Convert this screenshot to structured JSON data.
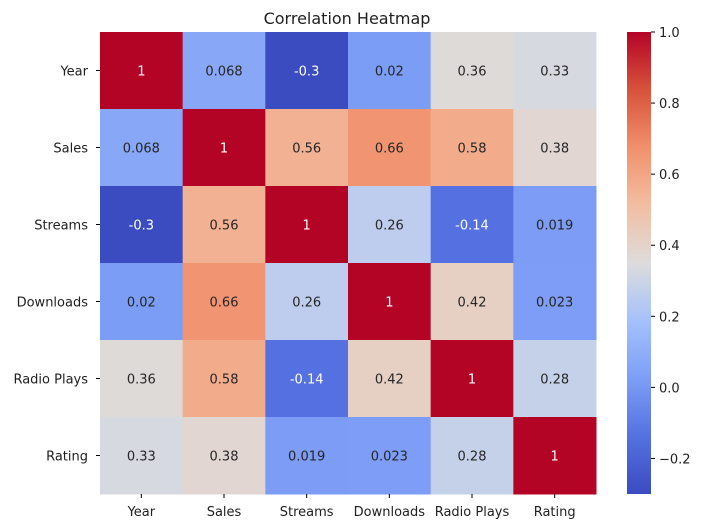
{
  "chart_data": {
    "type": "heatmap",
    "title": "Correlation Heatmap",
    "xlabel": "",
    "ylabel": "",
    "x_labels": [
      "Year",
      "Sales",
      "Streams",
      "Downloads",
      "Radio Plays",
      "Rating"
    ],
    "y_labels": [
      "Year",
      "Sales",
      "Streams",
      "Downloads",
      "Radio Plays",
      "Rating"
    ],
    "values": [
      [
        1,
        0.068,
        -0.3,
        0.02,
        0.36,
        0.33
      ],
      [
        0.068,
        1,
        0.56,
        0.66,
        0.58,
        0.38
      ],
      [
        -0.3,
        0.56,
        1,
        0.26,
        -0.14,
        0.019
      ],
      [
        0.02,
        0.66,
        0.26,
        1,
        0.42,
        0.023
      ],
      [
        0.36,
        0.58,
        -0.14,
        0.42,
        1,
        0.28
      ],
      [
        0.33,
        0.38,
        0.019,
        0.023,
        0.28,
        1
      ]
    ],
    "value_labels": [
      [
        "1",
        "0.068",
        "-0.3",
        "0.02",
        "0.36",
        "0.33"
      ],
      [
        "0.068",
        "1",
        "0.56",
        "0.66",
        "0.58",
        "0.38"
      ],
      [
        "-0.3",
        "0.56",
        "1",
        "0.26",
        "-0.14",
        "0.019"
      ],
      [
        "0.02",
        "0.66",
        "0.26",
        "1",
        "0.42",
        "0.023"
      ],
      [
        "0.36",
        "0.58",
        "-0.14",
        "0.42",
        "1",
        "0.28"
      ],
      [
        "0.33",
        "0.38",
        "0.019",
        "0.023",
        "0.28",
        "1"
      ]
    ],
    "colorscale": "coolwarm",
    "colorbar": {
      "vmin": -0.3,
      "vmax": 1.0,
      "ticks": [
        -0.2,
        0.0,
        0.2,
        0.4,
        0.6,
        0.8,
        1.0
      ],
      "tick_labels": [
        "−0.2",
        "0.0",
        "0.2",
        "0.4",
        "0.6",
        "0.8",
        "1.0"
      ]
    },
    "grid": false,
    "legend": "colorbar-right"
  }
}
